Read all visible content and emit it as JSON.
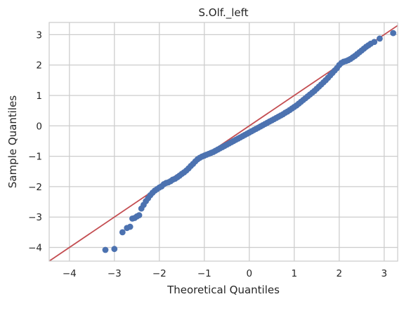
{
  "chart_data": {
    "type": "scatter",
    "title": "S.Olf._left",
    "xlabel": "Theoretical Quantiles",
    "ylabel": "Sample Quantiles",
    "xlim": [
      -4.45,
      3.3
    ],
    "ylim": [
      -4.45,
      3.4
    ],
    "xticks": [
      -4,
      -3,
      -2,
      -1,
      0,
      1,
      2,
      3
    ],
    "yticks": [
      -4,
      -3,
      -2,
      -1,
      0,
      1,
      2,
      3
    ],
    "xtick_labels": [
      "−4",
      "−3",
      "−2",
      "−1",
      "0",
      "1",
      "2",
      "3"
    ],
    "ytick_labels": [
      "−4",
      "−3",
      "−2",
      "−1",
      "0",
      "1",
      "2",
      "3"
    ],
    "grid": true,
    "reference_line": {
      "slope": 1,
      "intercept": 0,
      "color": "#c44e52"
    },
    "marker_color": "#4c72b0",
    "background": "#ffffff",
    "grid_color": "#cccccc",
    "series": [
      {
        "points": [
          [
            -3.2,
            -4.08
          ],
          [
            -3.0,
            -4.05
          ],
          [
            -2.82,
            -3.5
          ],
          [
            -2.72,
            -3.36
          ],
          [
            -2.65,
            -3.32
          ],
          [
            -2.6,
            -3.05
          ],
          [
            -2.55,
            -3.03
          ],
          [
            -2.5,
            -2.98
          ],
          [
            -2.45,
            -2.94
          ],
          [
            -2.4,
            -2.72
          ],
          [
            -2.35,
            -2.6
          ],
          [
            -2.3,
            -2.48
          ],
          [
            -2.25,
            -2.38
          ],
          [
            -2.2,
            -2.28
          ],
          [
            -2.15,
            -2.2
          ],
          [
            -2.1,
            -2.13
          ],
          [
            -2.05,
            -2.08
          ],
          [
            -2.0,
            -2.03
          ],
          [
            -1.95,
            -1.99
          ],
          [
            -1.9,
            -1.92
          ],
          [
            -1.85,
            -1.88
          ],
          [
            -1.8,
            -1.86
          ],
          [
            -1.75,
            -1.82
          ],
          [
            -1.7,
            -1.77
          ],
          [
            -1.65,
            -1.74
          ],
          [
            -1.6,
            -1.69
          ],
          [
            -1.55,
            -1.64
          ],
          [
            -1.5,
            -1.58
          ],
          [
            -1.45,
            -1.53
          ],
          [
            -1.4,
            -1.47
          ],
          [
            -1.35,
            -1.4
          ],
          [
            -1.3,
            -1.32
          ],
          [
            -1.25,
            -1.25
          ],
          [
            -1.2,
            -1.17
          ],
          [
            -1.15,
            -1.1
          ],
          [
            -1.1,
            -1.05
          ],
          [
            -1.05,
            -1.01
          ],
          [
            -1.0,
            -0.98
          ],
          [
            -0.95,
            -0.95
          ],
          [
            -0.9,
            -0.92
          ],
          [
            -0.85,
            -0.89
          ],
          [
            -0.8,
            -0.86
          ],
          [
            -0.75,
            -0.82
          ],
          [
            -0.7,
            -0.78
          ],
          [
            -0.65,
            -0.74
          ],
          [
            -0.6,
            -0.7
          ],
          [
            -0.55,
            -0.66
          ],
          [
            -0.5,
            -0.62
          ],
          [
            -0.45,
            -0.58
          ],
          [
            -0.4,
            -0.54
          ],
          [
            -0.35,
            -0.5
          ],
          [
            -0.3,
            -0.46
          ],
          [
            -0.25,
            -0.42
          ],
          [
            -0.2,
            -0.38
          ],
          [
            -0.15,
            -0.34
          ],
          [
            -0.1,
            -0.3
          ],
          [
            -0.05,
            -0.26
          ],
          [
            0.0,
            -0.22
          ],
          [
            0.05,
            -0.18
          ],
          [
            0.1,
            -0.14
          ],
          [
            0.15,
            -0.1
          ],
          [
            0.2,
            -0.06
          ],
          [
            0.25,
            -0.02
          ],
          [
            0.3,
            0.02
          ],
          [
            0.35,
            0.06
          ],
          [
            0.4,
            0.1
          ],
          [
            0.45,
            0.14
          ],
          [
            0.5,
            0.18
          ],
          [
            0.55,
            0.22
          ],
          [
            0.6,
            0.26
          ],
          [
            0.65,
            0.3
          ],
          [
            0.7,
            0.34
          ],
          [
            0.75,
            0.38
          ],
          [
            0.8,
            0.43
          ],
          [
            0.85,
            0.47
          ],
          [
            0.9,
            0.52
          ],
          [
            0.95,
            0.57
          ],
          [
            1.0,
            0.62
          ],
          [
            1.05,
            0.67
          ],
          [
            1.1,
            0.73
          ],
          [
            1.15,
            0.79
          ],
          [
            1.2,
            0.85
          ],
          [
            1.25,
            0.91
          ],
          [
            1.3,
            0.97
          ],
          [
            1.35,
            1.03
          ],
          [
            1.4,
            1.09
          ],
          [
            1.45,
            1.15
          ],
          [
            1.5,
            1.22
          ],
          [
            1.55,
            1.29
          ],
          [
            1.6,
            1.36
          ],
          [
            1.65,
            1.43
          ],
          [
            1.7,
            1.5
          ],
          [
            1.75,
            1.58
          ],
          [
            1.8,
            1.66
          ],
          [
            1.85,
            1.74
          ],
          [
            1.9,
            1.82
          ],
          [
            1.95,
            1.9
          ],
          [
            2.0,
            2.0
          ],
          [
            2.05,
            2.07
          ],
          [
            2.1,
            2.11
          ],
          [
            2.15,
            2.13
          ],
          [
            2.2,
            2.16
          ],
          [
            2.25,
            2.2
          ],
          [
            2.3,
            2.25
          ],
          [
            2.35,
            2.3
          ],
          [
            2.4,
            2.36
          ],
          [
            2.45,
            2.42
          ],
          [
            2.5,
            2.48
          ],
          [
            2.55,
            2.54
          ],
          [
            2.6,
            2.6
          ],
          [
            2.65,
            2.65
          ],
          [
            2.7,
            2.7
          ],
          [
            2.78,
            2.76
          ],
          [
            2.9,
            2.87
          ],
          [
            3.2,
            3.05
          ]
        ]
      }
    ]
  }
}
